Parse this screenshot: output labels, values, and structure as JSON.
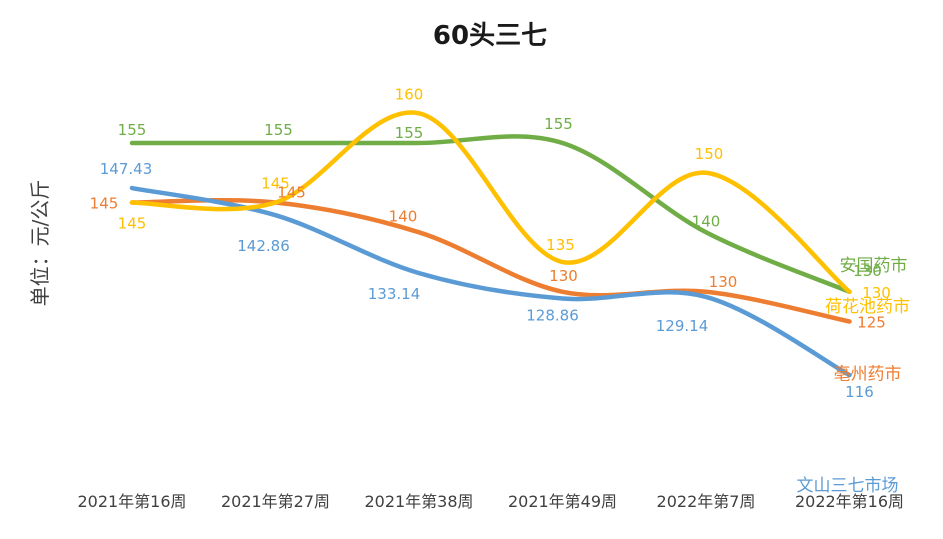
{
  "chart_data": {
    "type": "line",
    "title": "60头三七",
    "ylabel": "单位：元/公斤",
    "xlabel": "",
    "categories": [
      "2021年第16周",
      "2021年第27周",
      "2021年第38周",
      "2021年第49周",
      "2022年第7周",
      "2022年第16周"
    ],
    "ylim": [
      100,
      170
    ],
    "grid": false,
    "legend": "end-of-line labels",
    "series": [
      {
        "name": "安国药市",
        "color": "#70AD47",
        "values": [
          155,
          155,
          155,
          155,
          140,
          130
        ],
        "labels": [
          "155",
          "155",
          "155",
          "155",
          "140",
          "130"
        ]
      },
      {
        "name": "荷花池药市",
        "color": "#FFC000",
        "values": [
          145,
          145,
          160,
          135,
          150,
          130
        ],
        "labels": [
          "145",
          "145",
          "160",
          "135",
          "150",
          "130"
        ]
      },
      {
        "name": "亳州药市",
        "color": "#ED7D31",
        "values": [
          145,
          145,
          140,
          130,
          130,
          125
        ],
        "labels": [
          "145",
          "145",
          "140",
          "130",
          "130",
          "125"
        ]
      },
      {
        "name": "文山三七市场",
        "color": "#5B9BD5",
        "values": [
          147.43,
          142.86,
          133.14,
          128.86,
          129.14,
          116
        ],
        "labels": [
          "147.43",
          "142.86",
          "133.14",
          "128.86",
          "129.14",
          "116"
        ]
      }
    ]
  }
}
